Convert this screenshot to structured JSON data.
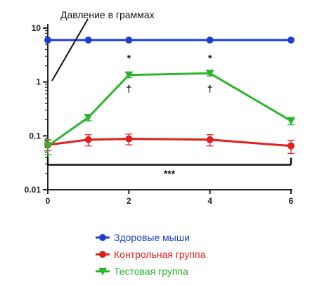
{
  "chart_data": {
    "type": "line",
    "ylabel": "Давление в граммах",
    "xlabel": "",
    "x": [
      0,
      1,
      2,
      4,
      6
    ],
    "xticks": [
      "0",
      "2",
      "4",
      "6"
    ],
    "xlim": [
      0,
      6
    ],
    "yscale": "log",
    "ylim": [
      0.01,
      10
    ],
    "yticks": [
      "0.01",
      "0.1",
      "1",
      "10"
    ],
    "legend_position": "bottom",
    "series": [
      {
        "name": "Здоровые мыши",
        "color": "#1f3fcf",
        "marker": "circle",
        "values": [
          6,
          6,
          6,
          6,
          6
        ],
        "error": [
          0,
          0,
          0,
          0,
          0
        ]
      },
      {
        "name": "Контрольная группа",
        "color": "#e02020",
        "marker": "circle",
        "values": [
          0.068,
          0.085,
          0.088,
          0.085,
          0.065
        ],
        "error": [
          0.015,
          0.02,
          0.02,
          0.02,
          0.018
        ]
      },
      {
        "name": "Тестовая группа",
        "color": "#2bb52b",
        "marker": "triangle-down",
        "values": [
          0.065,
          0.22,
          1.35,
          1.45,
          0.19
        ],
        "error": [
          0.02,
          0.03,
          0.15,
          0.15,
          0.03
        ]
      }
    ],
    "annotations": [
      {
        "x": 2,
        "text": "*",
        "y": 2.8
      },
      {
        "x": 2,
        "text": "†",
        "y": 0.75
      },
      {
        "x": 4,
        "text": "*",
        "y": 2.8
      },
      {
        "x": 4,
        "text": "†",
        "y": 0.75
      },
      {
        "x": 3,
        "text": "***",
        "y": 0.02
      }
    ],
    "bracket": {
      "x_from": 0,
      "x_to": 6,
      "y": 0.029
    }
  }
}
